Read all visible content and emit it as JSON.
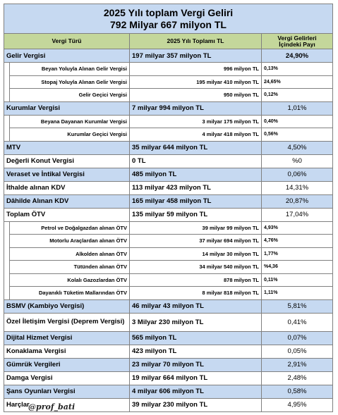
{
  "title_line1": "2025 Yılı toplam Vergi Geliri",
  "title_line2": "792 Milyar 667 milyon TL",
  "headers": {
    "type": "Vergi Türü",
    "total": "2025 Yılı Toplamı TL",
    "share_line1": "Vergi Gelirleri",
    "share_line2": "İçindeki Payı"
  },
  "rows": [
    {
      "kind": "main",
      "style": "blue",
      "name": "Gelir Vergisi",
      "amount": "197 milyar 357 milyon TL",
      "share": "24,90%",
      "share_bold": true
    },
    {
      "kind": "sub",
      "name": "Beyan Yoluyla Alınan Gelir Vergisi",
      "amount": "996 milyon TL",
      "share": "0,13%"
    },
    {
      "kind": "sub",
      "name": "Stopaj Yoluyla Alınan Gelir Vergisi",
      "amount": "195 milyar 410 milyon TL",
      "share": "24,65%"
    },
    {
      "kind": "sub",
      "name": "Gelir Geçici Vergisi",
      "amount": "950 milyon TL",
      "share": "0,12%"
    },
    {
      "kind": "main",
      "style": "blue",
      "name": "Kurumlar Vergisi",
      "amount": "7 milyar 994 milyon TL",
      "share": "1,01%",
      "share_bold": false
    },
    {
      "kind": "sub",
      "name": "Beyana Dayanan Kurumlar Vergisi",
      "amount": "3 milyar 175 milyon TL",
      "share": "0,40%"
    },
    {
      "kind": "sub",
      "name": "Kurumlar Geçici Vergisi",
      "amount": "4 milyar 418 milyon TL",
      "share": "0,56%"
    },
    {
      "kind": "main",
      "style": "blue",
      "name": "MTV",
      "amount": "35 milyar 644 milyon TL",
      "share": "4,50%",
      "share_bold": false
    },
    {
      "kind": "main",
      "style": "white",
      "name": "Değerli Konut Vergisi",
      "amount": "0 TL",
      "share": "%0",
      "share_bold": false
    },
    {
      "kind": "main",
      "style": "blue",
      "name": "Veraset ve İntikal Vergisi",
      "amount": "485 milyon TL",
      "share": "0,06%",
      "share_bold": false
    },
    {
      "kind": "main",
      "style": "white",
      "name": "İthalde alınan KDV",
      "amount": "113 milyar 423 milyon TL",
      "share": "14,31%",
      "share_bold": false
    },
    {
      "kind": "main",
      "style": "blue",
      "name": "Dâhilde Alınan KDV",
      "amount": "165 milyar 458 milyon TL",
      "share": "20,87%",
      "share_bold": false
    },
    {
      "kind": "main",
      "style": "white",
      "name": "Toplam ÖTV",
      "amount": "135 milyar 59 milyon TL",
      "share": "17,04%",
      "share_bold": false
    },
    {
      "kind": "sub",
      "name": "Petrol ve Doğalgazdan alınan ÖTV",
      "amount": "39 milyar 99 milyon TL",
      "share": "4,93%"
    },
    {
      "kind": "sub",
      "name": "Motorlu Araçlardan alınan ÖTV",
      "amount": "37 milyar 694 milyon TL",
      "share": "4,76%"
    },
    {
      "kind": "sub",
      "name": "Alkolden alınan ÖTV",
      "amount": "14 milyar 30 milyon TL",
      "share": "1,77%"
    },
    {
      "kind": "sub",
      "name": "Tütünden alınan ÖTV",
      "amount": "34 milyar 540 milyon TL",
      "share": "%4,36"
    },
    {
      "kind": "sub",
      "name": "Kolalı Gazozlardan ÖTV",
      "amount": "878 milyon TL",
      "share": "0,11%"
    },
    {
      "kind": "sub",
      "name": "Dayanıklı Tüketim Mallarından ÖTV",
      "amount": "8 milyar 818 milyon TL",
      "share": "1,11%"
    },
    {
      "kind": "main",
      "style": "blue",
      "name": "BSMV (Kambiyo Vergisi)",
      "amount": "46 milyar 43 milyon TL",
      "share": "5,81%",
      "share_bold": false
    },
    {
      "kind": "main",
      "style": "white",
      "two_line": true,
      "name": "Özel İletişim Vergisi (Deprem Vergisi)",
      "amount": "3 Milyar 230 milyon TL",
      "share": "0,41%",
      "share_bold": false
    },
    {
      "kind": "main",
      "style": "blue",
      "name": "Dijital Hizmet Vergisi",
      "amount": "565 milyon TL",
      "share": "0,07%",
      "share_bold": false
    },
    {
      "kind": "main",
      "style": "white",
      "name": "Konaklama Vergisi",
      "amount": "423 milyon TL",
      "share": "0,05%",
      "share_bold": false
    },
    {
      "kind": "main",
      "style": "blue",
      "name": "Gümrük Vergileri",
      "amount": "23 milyar 70 milyon TL",
      "share": "2,91%",
      "share_bold": false
    },
    {
      "kind": "main",
      "style": "white",
      "name": "Damga Vergisi",
      "amount": "19 milyar 664 milyon TL",
      "share": "2,48%",
      "share_bold": false
    },
    {
      "kind": "main",
      "style": "blue",
      "name": "Şans Oyunları Vergisi",
      "amount": "4 milyar 606 milyon TL",
      "share": "0,58%",
      "share_bold": false
    },
    {
      "kind": "main",
      "style": "white",
      "name": "Harçlar",
      "amount": "39 milyar 230 milyon TL",
      "share": "4,95%",
      "share_bold": false
    }
  ],
  "signature": "@prof_bati"
}
